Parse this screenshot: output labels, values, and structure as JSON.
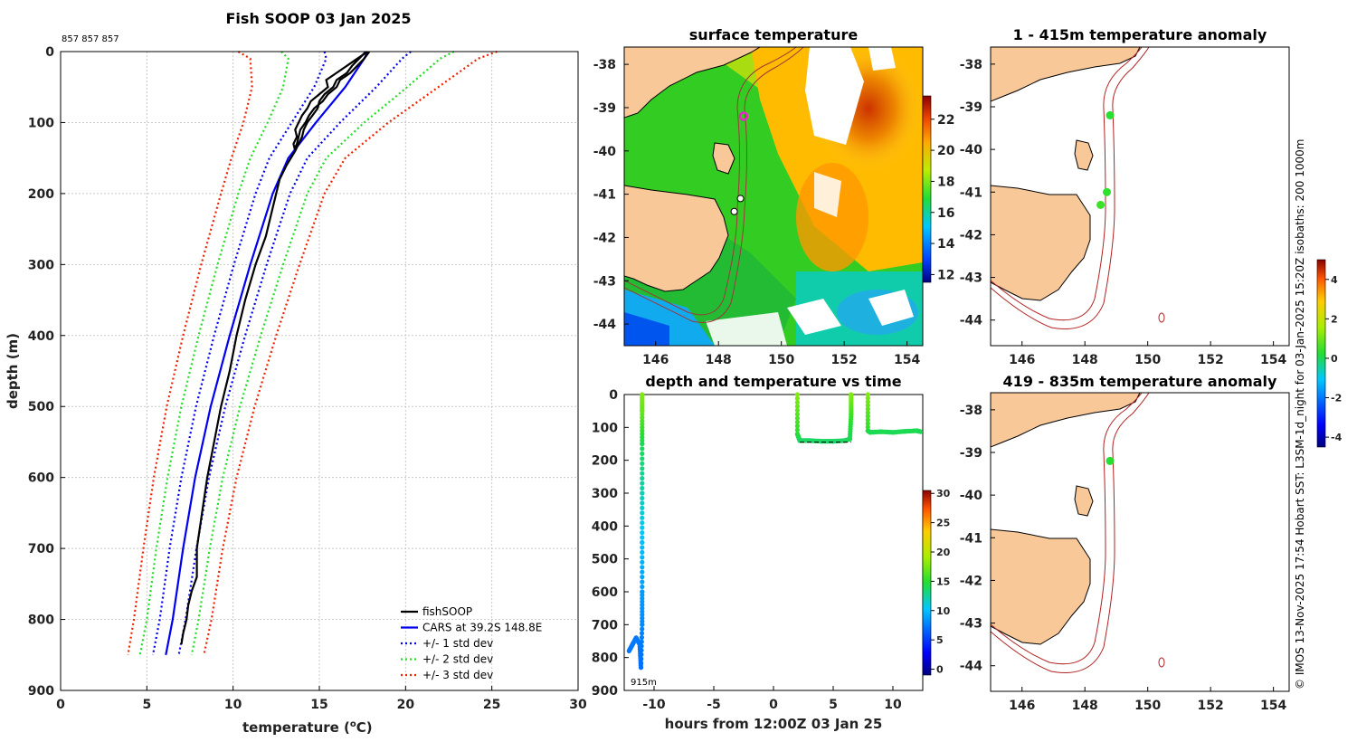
{
  "credit": "© IMOS 13-Nov-2025 17:54 Hobart SST: L3SM-1d_night for 03-Jan-2025 15:20Z isobaths: 200  1000m",
  "colors": {
    "fishsoop": "#000000",
    "cars": "#0000ee",
    "std1": "#0000ee",
    "std2": "#22dd22",
    "std3": "#ee2200",
    "land": "#f8c898",
    "isobath": "#b22222",
    "marker_green": "#33dd00",
    "marker_magenta": "#ee22cc"
  },
  "chart_data": [
    {
      "id": "profile",
      "type": "line",
      "title": "Fish SOOP 03 Jan 2025",
      "subtitle": "857 857 857",
      "xlabel": "temperature (",
      "xlabel_sup": "o",
      "xlabel_end": "C)",
      "ylabel": "depth (m)",
      "xlim": [
        0,
        30
      ],
      "ylim": [
        900,
        0
      ],
      "xticks": [
        0,
        5,
        10,
        15,
        20,
        25,
        30
      ],
      "yticks": [
        0,
        100,
        200,
        300,
        400,
        500,
        600,
        700,
        800,
        900
      ],
      "grid": true,
      "legend_position": "bottom-right",
      "depth": [
        0,
        10,
        50,
        100,
        150,
        200,
        300,
        400,
        500,
        600,
        700,
        800,
        850
      ],
      "cars": [
        17.8,
        17.6,
        16.5,
        14.8,
        13.2,
        12.3,
        11.0,
        9.8,
        8.7,
        7.8,
        7.1,
        6.5,
        6.1
      ],
      "std_offsets": [
        {
          "name": "+/- 1 std dev",
          "color_key": "std1",
          "offsets": [
            2.5,
            2.2,
            1.8,
            1.4,
            1.1,
            1.0,
            0.95,
            0.9,
            0.85,
            0.8,
            0.78,
            0.75,
            0.75
          ]
        },
        {
          "name": "+/- 2 std dev",
          "color_key": "std2",
          "offsets": [
            5.0,
            4.4,
            3.6,
            2.8,
            2.2,
            2.0,
            1.9,
            1.8,
            1.7,
            1.6,
            1.55,
            1.5,
            1.5
          ]
        },
        {
          "name": "+/- 3 std dev",
          "color_key": "std3",
          "offsets": [
            7.5,
            6.6,
            5.4,
            4.2,
            3.3,
            3.0,
            2.85,
            2.7,
            2.55,
            2.4,
            2.3,
            2.25,
            2.2
          ]
        }
      ],
      "fishsoop_profiles": [
        {
          "depth": [
            0,
            10,
            20,
            30,
            40,
            50,
            60,
            70,
            80,
            90,
            100,
            110,
            120,
            130,
            135
          ],
          "temp": [
            17.9,
            17.6,
            17.2,
            16.8,
            16.2,
            16.0,
            15.5,
            15.2,
            14.7,
            14.4,
            14.2,
            13.9,
            13.8,
            13.7,
            13.6
          ]
        },
        {
          "depth": [
            0,
            10,
            20,
            30,
            40,
            50,
            60,
            70,
            80,
            90,
            100,
            110,
            120,
            130,
            140
          ],
          "temp": [
            17.8,
            17.2,
            16.6,
            16.0,
            15.4,
            15.5,
            15.0,
            14.5,
            14.3,
            14.0,
            13.8,
            13.6,
            13.7,
            13.5,
            13.6
          ]
        },
        {
          "depth": [
            0,
            10,
            20,
            30,
            40,
            50,
            60,
            70,
            80,
            90,
            100,
            110,
            120,
            140,
            160,
            180,
            200,
            230,
            260,
            300,
            350,
            400,
            450,
            500,
            550,
            600,
            650,
            700,
            740,
            760,
            780,
            800,
            820,
            835
          ],
          "temp": [
            17.7,
            17.3,
            16.9,
            16.6,
            16.0,
            15.8,
            15.3,
            15.0,
            14.9,
            14.6,
            14.3,
            14.1,
            14.0,
            13.6,
            13.1,
            12.7,
            12.5,
            12.2,
            11.9,
            11.3,
            10.7,
            10.2,
            9.8,
            9.3,
            8.9,
            8.5,
            8.2,
            7.9,
            7.9,
            7.6,
            7.4,
            7.3,
            7.1,
            7.0
          ]
        }
      ],
      "legend": [
        "fishSOOP",
        "CARS at 39.2S 148.8E",
        "+/- 1 std dev",
        "+/- 2 std dev",
        "+/- 3 std dev"
      ]
    },
    {
      "id": "sst_map",
      "type": "heatmap",
      "title": "surface temperature",
      "xticks": [
        146,
        148,
        150,
        152,
        154
      ],
      "yticks": [
        -38,
        -39,
        -40,
        -41,
        -42,
        -43,
        -44
      ],
      "xlim": [
        145,
        154.5
      ],
      "ylim": [
        -44.5,
        -37.6
      ],
      "colorbar_ticks": [
        12,
        14,
        16,
        18,
        20,
        22
      ],
      "colorbar_range": [
        11.5,
        23.5
      ],
      "markers": [
        {
          "lon": 148.8,
          "lat": -39.2,
          "style": "magenta"
        },
        {
          "lon": 148.7,
          "lat": -41.1,
          "style": "open"
        },
        {
          "lon": 148.5,
          "lat": -41.4,
          "style": "open"
        }
      ]
    },
    {
      "id": "anomaly_top",
      "type": "scatter",
      "title": "1 - 415m temperature anomaly",
      "xticks": [
        146,
        148,
        150,
        152,
        154
      ],
      "yticks": [
        -38,
        -39,
        -40,
        -41,
        -42,
        -43,
        -44
      ],
      "xlim": [
        145,
        154.5
      ],
      "ylim": [
        -44.6,
        -37.6
      ],
      "points": [
        {
          "lon": 148.8,
          "lat": -39.2,
          "anomaly": 0.3
        },
        {
          "lon": 148.7,
          "lat": -41.0,
          "anomaly": 0.4
        },
        {
          "lon": 148.5,
          "lat": -41.3,
          "anomaly": 0.5
        }
      ]
    },
    {
      "id": "anomaly_bottom",
      "type": "scatter",
      "title": "419 - 835m temperature anomaly",
      "xticks": [
        146,
        148,
        150,
        152,
        154
      ],
      "yticks": [
        -38,
        -39,
        -40,
        -41,
        -42,
        -43,
        -44
      ],
      "xlim": [
        145,
        154.5
      ],
      "ylim": [
        -44.6,
        -37.6
      ],
      "points": [
        {
          "lon": 148.8,
          "lat": -39.2,
          "anomaly": 0.3
        }
      ],
      "colorbar_ticks": [
        -4,
        -2,
        0,
        2,
        4
      ],
      "colorbar_range": [
        -4.5,
        5.0
      ]
    },
    {
      "id": "depth_time",
      "type": "scatter",
      "title": "depth and temperature vs time",
      "xlabel": "hours from 12:00Z 03 Jan 25",
      "xlim": [
        -12.5,
        12.5
      ],
      "ylim": [
        900,
        0
      ],
      "xticks": [
        -10,
        -5,
        0,
        5,
        10
      ],
      "yticks": [
        0,
        100,
        200,
        300,
        400,
        500,
        600,
        700,
        800,
        900
      ],
      "max_depth_label": "915m",
      "colorbar_ticks": [
        0,
        5,
        10,
        15,
        20,
        25,
        30
      ],
      "colorbar_range": [
        -1,
        30.5
      ],
      "tracks": [
        {
          "t": [
            -11.0,
            -11.0,
            -11.0,
            -11.0,
            -11.0,
            -11.0,
            -11.0,
            -11.1,
            -11.2,
            -11.5,
            -11.8,
            -12.1
          ],
          "depth": [
            0,
            50,
            150,
            300,
            450,
            600,
            700,
            830,
            760,
            740,
            760,
            780
          ],
          "temp": [
            17.8,
            17,
            14,
            12,
            10,
            8.7,
            8.0,
            7.0,
            7.3,
            7.4,
            7.3,
            7.2
          ]
        },
        {
          "t": [
            2.0,
            2.0,
            2.2,
            3,
            4,
            5,
            6,
            6.4,
            6.5,
            6.5
          ],
          "depth": [
            0,
            120,
            140,
            140,
            142,
            142,
            140,
            135,
            60,
            0
          ],
          "temp": [
            17.9,
            15,
            13.8,
            13.7,
            13.7,
            13.6,
            13.8,
            13.9,
            15.5,
            17.8
          ]
        },
        {
          "t": [
            7.9,
            7.9,
            8.1,
            9,
            10,
            11,
            12,
            12.3
          ],
          "depth": [
            0,
            110,
            115,
            113,
            115,
            112,
            110,
            113
          ],
          "temp": [
            17.8,
            15,
            14.0,
            14.1,
            14.0,
            14.1,
            14.1,
            14.0
          ]
        }
      ]
    }
  ]
}
